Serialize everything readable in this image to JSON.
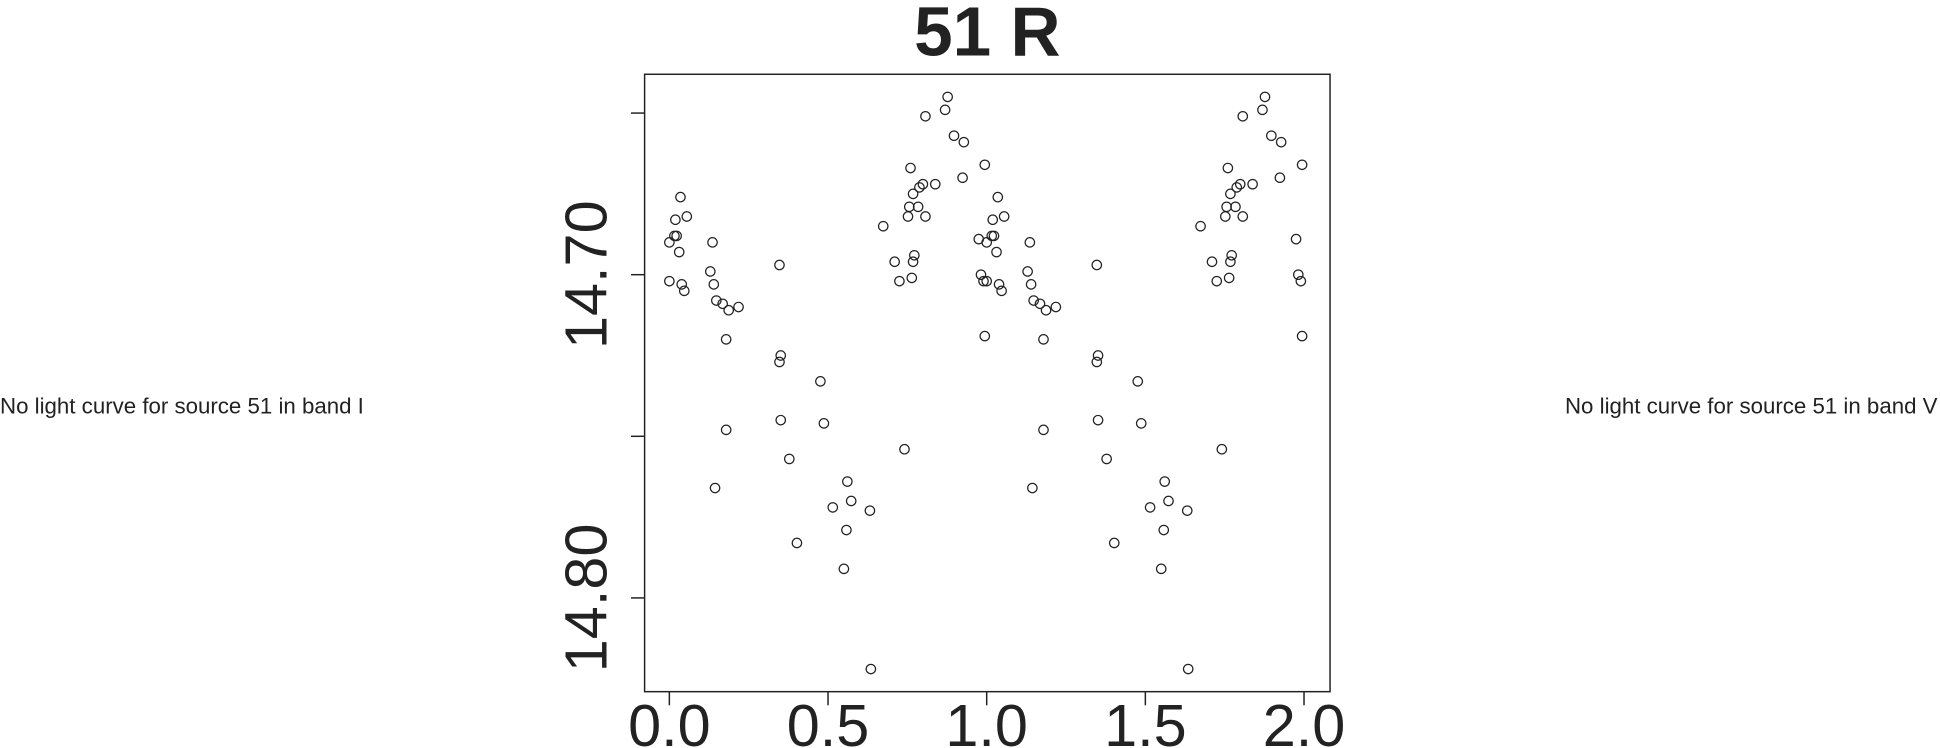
{
  "chart_data": {
    "type": "scatter",
    "title": "51 R",
    "annotations": [
      "No light curve for source 51 in band I",
      "No light curve for source 51 in band V"
    ],
    "color": "#222222",
    "xlim": [
      -0.078,
      2.082
    ],
    "ylim": [
      14.829,
      14.638
    ],
    "xticks": [
      {
        "value": 0,
        "label": "0.0"
      },
      {
        "value": 0.5,
        "label": "0.5"
      },
      {
        "value": 1,
        "label": "1.0"
      },
      {
        "value": 1.5,
        "label": "1.5"
      },
      {
        "value": 2,
        "label": "2.0"
      }
    ],
    "yticks": [
      {
        "value": 14.65,
        "label": null
      },
      {
        "value": 14.7,
        "label": "14.70"
      },
      {
        "value": 14.75,
        "label": null
      },
      {
        "value": 14.8,
        "label": "14.80"
      }
    ],
    "x": [
      0,
      0,
      0.016,
      0.019,
      0.023,
      0.031,
      0.035,
      0.039,
      0.047,
      0.055,
      0.129,
      0.136,
      0.14,
      0.148,
      0.168,
      0.179,
      0.179,
      0.187,
      0.218,
      0.144,
      0.347,
      0.347,
      0.351,
      0.351,
      0.378,
      0.402,
      0.476,
      0.487,
      0.515,
      0.558,
      0.561,
      0.55,
      0.573,
      0.632,
      0.635,
      0.674,
      0.71,
      0.725,
      0.741,
      0.752,
      0.756,
      0.76,
      0.764,
      0.768,
      0.772,
      0.768,
      0.784,
      0.788,
      0.799,
      0.807,
      0.807,
      0.838,
      0.869,
      0.877,
      0.897,
      0.928,
      0.924,
      0.975,
      0.982,
      0.99,
      0.994,
      0.994,
      1,
      1,
      1.016,
      1.019,
      1.023,
      1.031,
      1.035,
      1.039,
      1.047,
      1.055,
      1.129,
      1.136,
      1.14,
      1.148,
      1.168,
      1.179,
      1.179,
      1.187,
      1.218,
      1.144,
      1.347,
      1.347,
      1.351,
      1.351,
      1.378,
      1.402,
      1.476,
      1.487,
      1.515,
      1.558,
      1.561,
      1.55,
      1.573,
      1.632,
      1.635,
      1.674,
      1.71,
      1.725,
      1.741,
      1.752,
      1.756,
      1.76,
      1.764,
      1.768,
      1.772,
      1.768,
      1.784,
      1.788,
      1.799,
      1.807,
      1.807,
      1.838,
      1.869,
      1.877,
      1.897,
      1.928,
      1.924,
      1.975,
      1.982,
      1.99,
      1.994,
      1.994
    ],
    "values": [
      14.69,
      14.702,
      14.688,
      14.683,
      14.688,
      14.693,
      14.676,
      14.703,
      14.705,
      14.682,
      14.699,
      14.69,
      14.703,
      14.708,
      14.709,
      14.72,
      14.748,
      14.711,
      14.71,
      14.766,
      14.697,
      14.727,
      14.725,
      14.745,
      14.757,
      14.783,
      14.733,
      14.746,
      14.772,
      14.779,
      14.764,
      14.791,
      14.77,
      14.773,
      14.822,
      14.685,
      14.696,
      14.702,
      14.754,
      14.682,
      14.679,
      14.667,
      14.701,
      14.696,
      14.694,
      14.675,
      14.679,
      14.673,
      14.672,
      14.682,
      14.651,
      14.672,
      14.649,
      14.645,
      14.657,
      14.659,
      14.67,
      14.689,
      14.7,
      14.702,
      14.666,
      14.719,
      14.69,
      14.702,
      14.688,
      14.683,
      14.688,
      14.693,
      14.676,
      14.703,
      14.705,
      14.682,
      14.699,
      14.69,
      14.703,
      14.708,
      14.709,
      14.72,
      14.748,
      14.711,
      14.71,
      14.766,
      14.697,
      14.727,
      14.725,
      14.745,
      14.757,
      14.783,
      14.733,
      14.746,
      14.772,
      14.779,
      14.764,
      14.791,
      14.77,
      14.773,
      14.822,
      14.685,
      14.696,
      14.702,
      14.754,
      14.682,
      14.679,
      14.667,
      14.701,
      14.696,
      14.694,
      14.675,
      14.679,
      14.673,
      14.672,
      14.682,
      14.651,
      14.672,
      14.649,
      14.645,
      14.657,
      14.659,
      14.67,
      14.689,
      14.7,
      14.702,
      14.666,
      14.719
    ]
  }
}
